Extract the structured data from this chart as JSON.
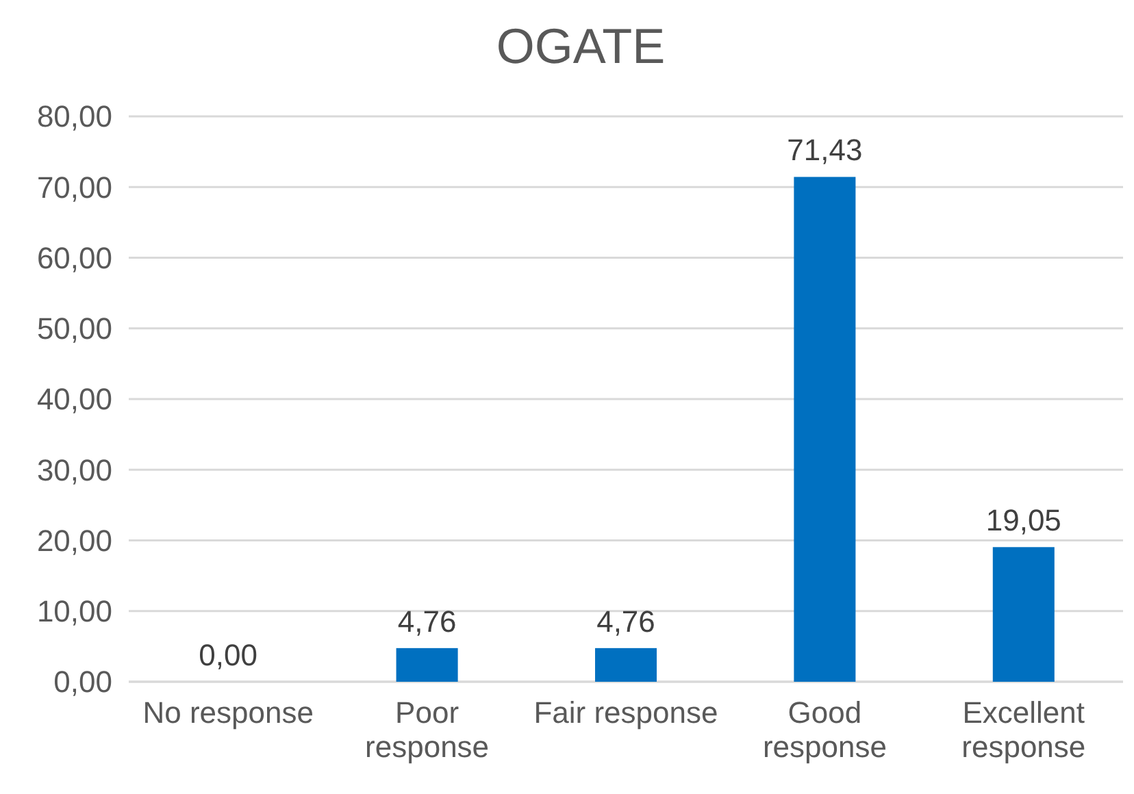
{
  "chart_data": {
    "type": "bar",
    "title": "OGATE",
    "categories": [
      "No response",
      "Poor response",
      "Fair response",
      "Good response",
      "Excellent response"
    ],
    "values": [
      0,
      4.76,
      4.76,
      71.43,
      19.05
    ],
    "value_labels": [
      "0,00",
      "4,76",
      "4,76",
      "71,43",
      "19,05"
    ],
    "color": "#0070c0",
    "ylim": [
      0,
      80
    ],
    "yticks": [
      {
        "value": 0,
        "label": "0,00"
      },
      {
        "value": 10,
        "label": "10,00"
      },
      {
        "value": 20,
        "label": "20,00"
      },
      {
        "value": 30,
        "label": "30,00"
      },
      {
        "value": 40,
        "label": "40,00"
      },
      {
        "value": 50,
        "label": "50,00"
      },
      {
        "value": 60,
        "label": "60,00"
      },
      {
        "value": 70,
        "label": "70,00"
      },
      {
        "value": 80,
        "label": "80,00"
      }
    ],
    "grid": "y"
  }
}
